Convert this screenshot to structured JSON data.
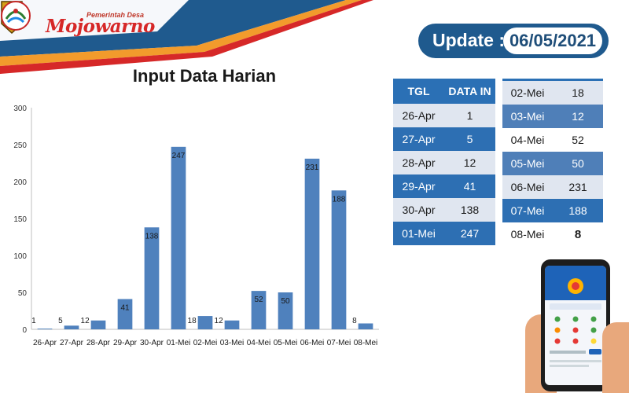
{
  "header": {
    "brand_small": "Pemerintah Desa",
    "brand_name": "Mojowarno",
    "update_label": "Update :",
    "update_date": "06/05/2021"
  },
  "colors": {
    "brand_blue": "#1f5a8e",
    "bar_blue": "#4f81bd",
    "header_red": "#d62828",
    "header_orange": "#f29b2c"
  },
  "chart_data": {
    "type": "bar",
    "title": "Input Data Harian",
    "categories": [
      "26-Apr",
      "27-Apr",
      "28-Apr",
      "29-Apr",
      "30-Apr",
      "01-Mei",
      "02-Mei",
      "03-Mei",
      "04-Mei",
      "05-Mei",
      "06-Mei",
      "07-Mei",
      "08-Mei"
    ],
    "values": [
      1,
      5,
      12,
      41,
      138,
      247,
      18,
      12,
      52,
      50,
      231,
      188,
      8
    ],
    "ylim": [
      0,
      300
    ],
    "yticks": [
      0,
      50,
      100,
      150,
      200,
      250,
      300
    ],
    "grid": false,
    "legend": "none"
  },
  "table": {
    "headers": [
      "TGL",
      "DATA IN"
    ],
    "left_rows": [
      [
        "26-Apr",
        "1"
      ],
      [
        "27-Apr",
        "5"
      ],
      [
        "28-Apr",
        "12"
      ],
      [
        "29-Apr",
        "41"
      ],
      [
        "30-Apr",
        "138"
      ],
      [
        "01-Mei",
        "247"
      ]
    ],
    "right_rows": [
      [
        "02-Mei",
        "18"
      ],
      [
        "03-Mei",
        "12"
      ],
      [
        "04-Mei",
        "52"
      ],
      [
        "05-Mei",
        "50"
      ],
      [
        "06-Mei",
        "231"
      ],
      [
        "07-Mei",
        "188"
      ],
      [
        "08-Mei",
        "8"
      ]
    ]
  }
}
